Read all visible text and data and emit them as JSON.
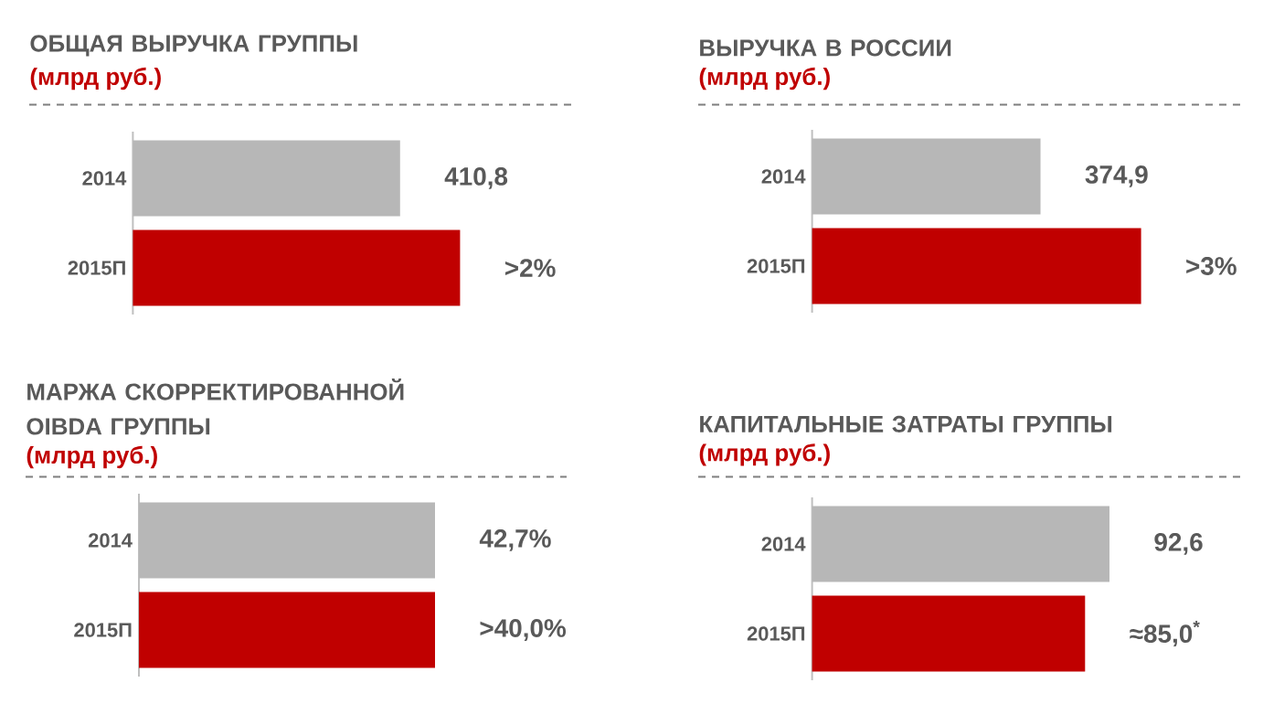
{
  "chart_data": [
    {
      "type": "bar",
      "orientation": "horizontal",
      "title": "ОБЩАЯ ВЫРУЧКА ГРУППЫ",
      "subtitle": "(млрд руб.)",
      "categories": [
        "2014",
        "2015П"
      ],
      "values": [
        410.8,
        503
      ],
      "colors": [
        "#b7b7b7",
        "#c00000"
      ],
      "value_labels": [
        "410,8",
        ">2%"
      ]
    },
    {
      "type": "bar",
      "orientation": "horizontal",
      "title": "ВЫРУЧКА В РОССИИ",
      "subtitle": "(млрд руб.)",
      "categories": [
        "2014",
        "2015П"
      ],
      "values": [
        374.9,
        540
      ],
      "colors": [
        "#b7b7b7",
        "#c00000"
      ],
      "value_labels": [
        "374,9",
        ">3%"
      ]
    },
    {
      "type": "bar",
      "orientation": "horizontal",
      "title": "МАРЖА СКОРРЕКТИРОВАННОЙ OIBDA ГРУППЫ",
      "subtitle": "(млрд руб.)",
      "categories": [
        "2014",
        "2015П"
      ],
      "values": [
        42.7,
        42.7
      ],
      "colors": [
        "#b7b7b7",
        "#c00000"
      ],
      "value_labels": [
        "42,7%",
        ">40,0%"
      ]
    },
    {
      "type": "bar",
      "orientation": "horizontal",
      "title": "КАПИТАЛЬНЫЕ ЗАТРАТЫ ГРУППЫ",
      "subtitle": "(млрд руб.)",
      "categories": [
        "2014",
        "2015П"
      ],
      "values": [
        92.6,
        85.0
      ],
      "colors": [
        "#b7b7b7",
        "#c00000"
      ],
      "value_labels": [
        "92,6",
        "≈85,0$^{*}$"
      ]
    }
  ]
}
